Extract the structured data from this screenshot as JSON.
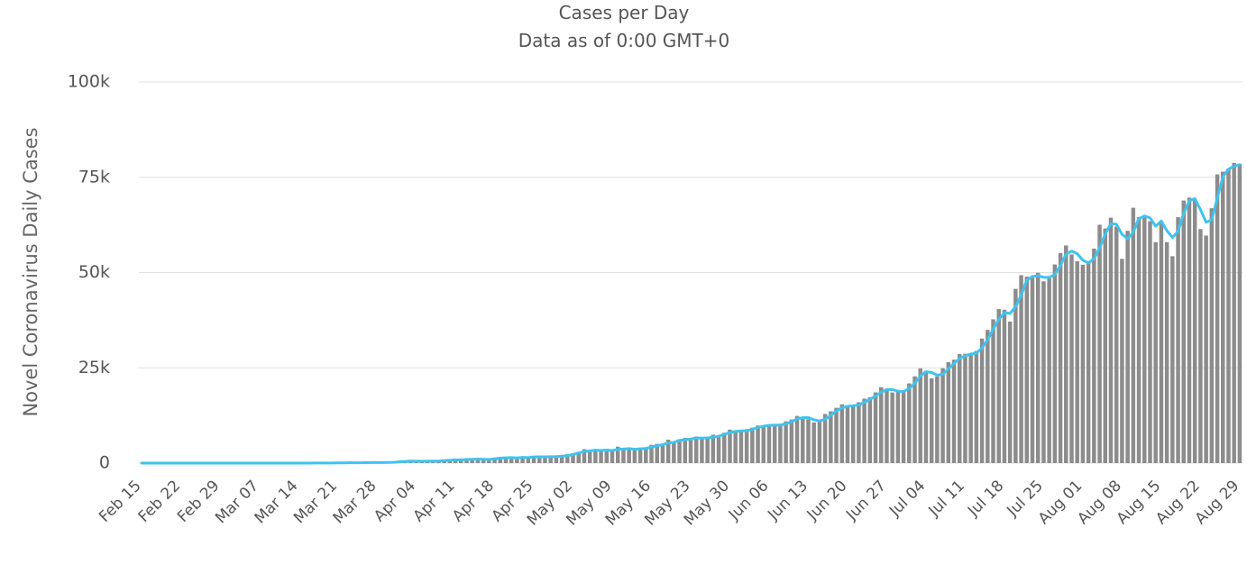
{
  "chart_data": {
    "type": "combo",
    "title": "Cases per Day",
    "subtitle": "Data as of 0:00 GMT+0",
    "y_label": "Novel Coronavirus Daily Cases",
    "ylim": [
      0,
      100000
    ],
    "yticks": [
      0,
      {
        "value": 25000,
        "label": "25k"
      },
      {
        "value": 50000,
        "label": "50k"
      },
      {
        "value": 75000,
        "label": "75k"
      },
      {
        "value": 100000,
        "label": "100k"
      }
    ],
    "grid": true,
    "categories": [
      "Feb 15",
      null,
      null,
      null,
      null,
      null,
      null,
      "Feb 22",
      null,
      null,
      null,
      null,
      null,
      null,
      "Feb 29",
      null,
      null,
      null,
      null,
      null,
      null,
      "Mar 07",
      null,
      null,
      null,
      null,
      null,
      null,
      "Mar 14",
      null,
      null,
      null,
      null,
      null,
      null,
      "Mar 21",
      null,
      null,
      null,
      null,
      null,
      null,
      "Mar 28",
      null,
      null,
      null,
      null,
      null,
      null,
      "Apr 04",
      null,
      null,
      null,
      null,
      null,
      null,
      "Apr 11",
      null,
      null,
      null,
      null,
      null,
      null,
      "Apr 18",
      null,
      null,
      null,
      null,
      null,
      null,
      "Apr 25",
      null,
      null,
      null,
      null,
      null,
      null,
      "May 02",
      null,
      null,
      null,
      null,
      null,
      null,
      "May 09",
      null,
      null,
      null,
      null,
      null,
      null,
      "May 16",
      null,
      null,
      null,
      null,
      null,
      null,
      "May 23",
      null,
      null,
      null,
      null,
      null,
      null,
      "May 30",
      null,
      null,
      null,
      null,
      null,
      null,
      "Jun 06",
      null,
      null,
      null,
      null,
      null,
      null,
      "Jun 13",
      null,
      null,
      null,
      null,
      null,
      null,
      "Jun 20",
      null,
      null,
      null,
      null,
      null,
      null,
      "Jun 27",
      null,
      null,
      null,
      null,
      null,
      null,
      "Jul 04",
      null,
      null,
      null,
      null,
      null,
      null,
      "Jul 11",
      null,
      null,
      null,
      null,
      null,
      null,
      "Jul 18",
      null,
      null,
      null,
      null,
      null,
      null,
      "Jul 25",
      null,
      null,
      null,
      null,
      null,
      null,
      "Aug 01",
      null,
      null,
      null,
      null,
      null,
      null,
      "Aug 08",
      null,
      null,
      null,
      null,
      null,
      null,
      "Aug 15",
      null,
      null,
      null,
      null,
      null,
      null,
      "Aug 22",
      null,
      null,
      null,
      null,
      null,
      null,
      "Aug 29"
    ],
    "series": [
      {
        "type": "bar",
        "color": "#8c8c8c",
        "values": [
          0,
          0,
          0,
          0,
          0,
          0,
          0,
          0,
          0,
          0,
          0,
          0,
          0,
          0,
          0,
          0,
          1,
          0,
          1,
          22,
          2,
          1,
          3,
          5,
          9,
          15,
          8,
          10,
          10,
          13,
          17,
          22,
          23,
          44,
          50,
          86,
          73,
          99,
          64,
          97,
          194,
          114,
          112,
          206,
          227,
          146,
          601,
          545,
          478,
          515,
          506,
          489,
          573,
          565,
          813,
          871,
          854,
          758,
          1243,
          1031,
          886,
          1061,
          922,
          1371,
          1580,
          1239,
          1537,
          1292,
          1667,
          1408,
          1835,
          1607,
          1568,
          1902,
          1705,
          1801,
          2396,
          2564,
          2952,
          3656,
          2971,
          3602,
          3344,
          3339,
          3175,
          4311,
          3592,
          3562,
          3726,
          3991,
          3808,
          4794,
          5049,
          4630,
          6147,
          5553,
          6198,
          6629,
          6154,
          6977,
          6535,
          6387,
          7466,
          7264,
          7964,
          8789,
          8171,
          8392,
          8909,
          9304,
          9851,
          9887,
          9971,
          9983,
          9987,
          10956,
          11458,
          12375,
          11929,
          11502,
          10667,
          10974,
          12881,
          13586,
          14516,
          15413,
          14821,
          14933,
          15968,
          16922,
          17296,
          18552,
          19906,
          19459,
          18522,
          18653,
          19148,
          20903,
          22771,
          24850,
          24248,
          22252,
          22752,
          24879,
          26506,
          27114,
          28637,
          28701,
          28498,
          29429,
          32695,
          34956,
          37724,
          40425,
          40243,
          37148,
          45720,
          49310,
          48916,
          48661,
          49931,
          47704,
          48513,
          52123,
          55078,
          57118,
          54735,
          52972,
          52050,
          52509,
          56282,
          62538,
          61537,
          64399,
          62064,
          53601,
          60963,
          66999,
          64553,
          65002,
          63490,
          57981,
          63490,
          57981,
          54300,
          64531,
          68898,
          69652,
          69239,
          61408,
          59696,
          66873,
          75760,
          76472,
          77266,
          78761,
          78512
        ]
      },
      {
        "type": "line",
        "color": "#3fc3ef",
        "values": [
          0,
          0,
          0,
          0,
          0,
          0,
          0,
          0,
          0,
          0,
          0,
          0,
          0,
          0,
          0,
          0,
          0,
          0,
          1,
          8,
          8,
          8,
          9,
          3,
          6,
          10,
          11,
          11,
          11,
          12,
          13,
          17,
          21,
          30,
          39,
          60,
          70,
          86,
          79,
          87,
          118,
          135,
          140,
          144,
          183,
          193,
          325,
          431,
          541,
          513,
          500,
          503,
          523,
          542,
          650,
          750,
          846,
          828,
          952,
          1011,
          1053,
          993,
          956,
          1118,
          1291,
          1397,
          1452,
          1356,
          1499,
          1456,
          1637,
          1650,
          1670,
          1692,
          1725,
          1803,
          1967,
          2254,
          2637,
          3057,
          3193,
          3410,
          3306,
          3428,
          3286,
          3610,
          3693,
          3822,
          3627,
          3760,
          3842,
          4198,
          4550,
          4824,
          5275,
          5443,
          5966,
          6127,
          6327,
          6587,
          6555,
          6633,
          6796,
          7039,
          7565,
          8006,
          8308,
          8451,
          8491,
          8868,
          9355,
          9681,
          9903,
          9947,
          9980,
          10309,
          10799,
          11596,
          11921,
          11935,
          11366,
          11048,
          11507,
          12480,
          13661,
          14505,
          14917,
          15056,
          15241,
          15941,
          16729,
          17590,
          18585,
          19306,
          19296,
          18878,
          18774,
          19568,
          20941,
          22841,
          23956,
          23783,
          23084,
          23294,
          24712,
          26166,
          27419,
          28151,
          28612,
          28876,
          30207,
          32360,
          35125,
          37702,
          39464,
          39272,
          41037,
          44059,
          47982,
          48962,
          49169,
          48765,
          48716,
          49447,
          51905,
          54773,
          55644,
          54942,
          53252,
          52510,
          53614,
          56443,
          60119,
          62825,
          62667,
          60021,
          58870,
          60521,
          64172,
          64851,
          64348,
          62158,
          63500,
          61000,
          59200,
          60800,
          65500,
          68800,
          69400,
          66500,
          63200,
          63800,
          69500,
          75100,
          77100,
          77900,
          78300
        ]
      }
    ]
  }
}
